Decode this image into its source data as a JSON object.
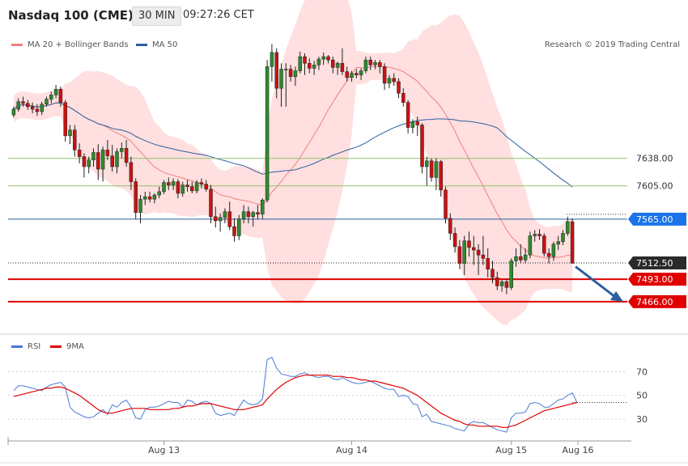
{
  "header": {
    "instrument": "Nasdaq 100 (CME)",
    "timeframe": "30 MIN",
    "time": "09:27:26 CET"
  },
  "legend": {
    "bollinger_label": "MA 20 + Bollinger Bands",
    "ma50_label": "MA 50",
    "copyright": "Research © 2019 Trading Central"
  },
  "rsi_legend": {
    "rsi_label": "RSI",
    "ma_label": "9MA"
  },
  "colors": {
    "bull": "#2e8b2e",
    "bear": "#cc1111",
    "band_fill": "#ffd4d4",
    "ma20": "#f08080",
    "ma50": "#2d5f9e",
    "green_level": "#8fc46a",
    "support": "#e00000",
    "current_price_tag": "#2a2a2a",
    "resistance_tag": "#1a73e8",
    "rsi": "#4a78d6",
    "rsi_ma": "#e00000",
    "arrow": "#2d5f9e"
  },
  "chart_data": [
    {
      "type": "candlestick",
      "title": "Nasdaq 100 (CME)",
      "ylim": [
        7430,
        7760
      ],
      "x_labels": [
        "Aug 13",
        "Aug 14",
        "Aug 15",
        "Aug 16"
      ],
      "levels": [
        {
          "value": 7638.0,
          "label": "7638.00",
          "kind": "resistance"
        },
        {
          "value": 7605.0,
          "label": "7605.00",
          "kind": "resistance"
        },
        {
          "value": 7565.0,
          "label": "7565.00",
          "kind": "pivot"
        },
        {
          "value": 7512.5,
          "label": "7512.50",
          "kind": "last_price"
        },
        {
          "value": 7493.0,
          "label": "7493.00",
          "kind": "support"
        },
        {
          "value": 7466.0,
          "label": "7466.00",
          "kind": "support"
        }
      ],
      "candles": [
        [
          7690,
          7700,
          7687,
          7697
        ],
        [
          7697,
          7710,
          7694,
          7706
        ],
        [
          7706,
          7712,
          7700,
          7704
        ],
        [
          7704,
          7708,
          7696,
          7700
        ],
        [
          7700,
          7705,
          7692,
          7697
        ],
        [
          7697,
          7703,
          7689,
          7694
        ],
        [
          7694,
          7706,
          7690,
          7703
        ],
        [
          7703,
          7712,
          7700,
          7709
        ],
        [
          7709,
          7718,
          7704,
          7714
        ],
        [
          7714,
          7726,
          7710,
          7721
        ],
        [
          7721,
          7724,
          7700,
          7705
        ],
        [
          7705,
          7708,
          7658,
          7665
        ],
        [
          7665,
          7678,
          7655,
          7672
        ],
        [
          7672,
          7678,
          7640,
          7648
        ],
        [
          7648,
          7656,
          7632,
          7640
        ],
        [
          7640,
          7644,
          7615,
          7628
        ],
        [
          7628,
          7640,
          7620,
          7636
        ],
        [
          7636,
          7650,
          7628,
          7645
        ],
        [
          7645,
          7655,
          7612,
          7625
        ],
        [
          7625,
          7652,
          7610,
          7648
        ],
        [
          7648,
          7660,
          7636,
          7641
        ],
        [
          7641,
          7654,
          7622,
          7628
        ],
        [
          7628,
          7650,
          7620,
          7646
        ],
        [
          7646,
          7657,
          7638,
          7650
        ],
        [
          7650,
          7660,
          7628,
          7633
        ],
        [
          7633,
          7640,
          7600,
          7610
        ],
        [
          7610,
          7614,
          7565,
          7573
        ],
        [
          7573,
          7594,
          7560,
          7589
        ],
        [
          7589,
          7598,
          7582,
          7592
        ],
        [
          7592,
          7598,
          7585,
          7589
        ],
        [
          7589,
          7596,
          7584,
          7594
        ],
        [
          7594,
          7604,
          7590,
          7598
        ],
        [
          7598,
          7612,
          7595,
          7609
        ],
        [
          7609,
          7615,
          7600,
          7606
        ],
        [
          7606,
          7614,
          7600,
          7610
        ],
        [
          7610,
          7613,
          7590,
          7596
        ],
        [
          7596,
          7610,
          7592,
          7606
        ],
        [
          7606,
          7612,
          7598,
          7604
        ],
        [
          7604,
          7610,
          7596,
          7599
        ],
        [
          7599,
          7612,
          7596,
          7609
        ],
        [
          7609,
          7614,
          7602,
          7607
        ],
        [
          7607,
          7612,
          7598,
          7601
        ],
        [
          7601,
          7606,
          7560,
          7568
        ],
        [
          7568,
          7580,
          7555,
          7563
        ],
        [
          7563,
          7572,
          7550,
          7567
        ],
        [
          7567,
          7578,
          7560,
          7574
        ],
        [
          7574,
          7586,
          7552,
          7556
        ],
        [
          7556,
          7566,
          7538,
          7545
        ],
        [
          7545,
          7570,
          7540,
          7565
        ],
        [
          7565,
          7582,
          7560,
          7574
        ],
        [
          7574,
          7580,
          7560,
          7568
        ],
        [
          7568,
          7575,
          7556,
          7573
        ],
        [
          7573,
          7582,
          7565,
          7571
        ],
        [
          7571,
          7590,
          7565,
          7588
        ],
        [
          7588,
          7756,
          7585,
          7748
        ],
        [
          7748,
          7775,
          7730,
          7765
        ],
        [
          7765,
          7770,
          7710,
          7722
        ],
        [
          7722,
          7752,
          7700,
          7745
        ],
        [
          7745,
          7752,
          7700,
          7745
        ],
        [
          7745,
          7750,
          7730,
          7736
        ],
        [
          7736,
          7748,
          7725,
          7743
        ],
        [
          7743,
          7766,
          7740,
          7760
        ],
        [
          7760,
          7764,
          7738,
          7752
        ],
        [
          7752,
          7758,
          7740,
          7746
        ],
        [
          7746,
          7755,
          7738,
          7750
        ],
        [
          7750,
          7760,
          7744,
          7757
        ],
        [
          7757,
          7765,
          7750,
          7760
        ],
        [
          7760,
          7762,
          7752,
          7756
        ],
        [
          7756,
          7760,
          7740,
          7747
        ],
        [
          7747,
          7754,
          7738,
          7752
        ],
        [
          7752,
          7770,
          7738,
          7742
        ],
        [
          7742,
          7748,
          7730,
          7735
        ],
        [
          7735,
          7743,
          7730,
          7740
        ],
        [
          7740,
          7745,
          7734,
          7738
        ],
        [
          7738,
          7746,
          7732,
          7743
        ],
        [
          7743,
          7760,
          7740,
          7756
        ],
        [
          7756,
          7760,
          7744,
          7750
        ],
        [
          7750,
          7756,
          7745,
          7753
        ],
        [
          7753,
          7756,
          7740,
          7748
        ],
        [
          7748,
          7752,
          7720,
          7728
        ],
        [
          7728,
          7738,
          7722,
          7734
        ],
        [
          7734,
          7740,
          7725,
          7730
        ],
        [
          7730,
          7734,
          7710,
          7716
        ],
        [
          7716,
          7722,
          7700,
          7705
        ],
        [
          7705,
          7708,
          7668,
          7675
        ],
        [
          7675,
          7685,
          7668,
          7682
        ],
        [
          7682,
          7688,
          7665,
          7678
        ],
        [
          7678,
          7680,
          7620,
          7628
        ],
        [
          7628,
          7640,
          7605,
          7635
        ],
        [
          7635,
          7638,
          7610,
          7615
        ],
        [
          7615,
          7638,
          7600,
          7634
        ],
        [
          7634,
          7636,
          7592,
          7600
        ],
        [
          7600,
          7604,
          7560,
          7566
        ],
        [
          7566,
          7572,
          7540,
          7548
        ],
        [
          7548,
          7555,
          7525,
          7532
        ],
        [
          7532,
          7540,
          7505,
          7512
        ],
        [
          7512,
          7545,
          7498,
          7539
        ],
        [
          7539,
          7550,
          7520,
          7531
        ],
        [
          7531,
          7545,
          7510,
          7528
        ],
        [
          7528,
          7535,
          7498,
          7522
        ],
        [
          7522,
          7545,
          7510,
          7518
        ],
        [
          7518,
          7530,
          7495,
          7505
        ],
        [
          7505,
          7515,
          7488,
          7495
        ],
        [
          7495,
          7502,
          7480,
          7485
        ],
        [
          7485,
          7492,
          7478,
          7490
        ],
        [
          7490,
          7493,
          7475,
          7483
        ],
        [
          7483,
          7518,
          7480,
          7515
        ],
        [
          7515,
          7530,
          7508,
          7520
        ],
        [
          7520,
          7535,
          7512,
          7516
        ],
        [
          7516,
          7530,
          7512,
          7522
        ],
        [
          7522,
          7550,
          7518,
          7545
        ],
        [
          7545,
          7552,
          7538,
          7547
        ],
        [
          7547,
          7553,
          7540,
          7545
        ],
        [
          7545,
          7548,
          7520,
          7524
        ],
        [
          7524,
          7530,
          7512,
          7520
        ],
        [
          7520,
          7538,
          7515,
          7535
        ],
        [
          7535,
          7545,
          7528,
          7538
        ],
        [
          7538,
          7552,
          7534,
          7548
        ],
        [
          7548,
          7568,
          7545,
          7562
        ],
        [
          7562,
          7566,
          7512,
          7512
        ]
      ]
    },
    {
      "type": "line",
      "title": "RSI",
      "ylim": [
        15,
        90
      ],
      "ticks": [
        30,
        50,
        70
      ],
      "series": [
        {
          "name": "RSI",
          "values": [
            54,
            58,
            58,
            57,
            56,
            55,
            54,
            57,
            59,
            60,
            61,
            57,
            40,
            36,
            34,
            32,
            31,
            32,
            35,
            38,
            34,
            42,
            40,
            44,
            46,
            40,
            31,
            30,
            38,
            40,
            40,
            41,
            43,
            45,
            44,
            44,
            40,
            46,
            45,
            42,
            44,
            45,
            43,
            35,
            33,
            34,
            35,
            33,
            40,
            46,
            43,
            42,
            43,
            47,
            80,
            82,
            73,
            68,
            67,
            66,
            66,
            68,
            69,
            67,
            66,
            65,
            66,
            66,
            64,
            63,
            65,
            63,
            61,
            60,
            60,
            61,
            62,
            60,
            58,
            56,
            55,
            55,
            49,
            50,
            49,
            43,
            42,
            32,
            34,
            28,
            27,
            26,
            25,
            24,
            22,
            21,
            20,
            26,
            28,
            27,
            27,
            25,
            23,
            21,
            20,
            19,
            31,
            35,
            35,
            36,
            43,
            44,
            43,
            40,
            40,
            43,
            46,
            47,
            50,
            52,
            44
          ]
        },
        {
          "name": "9MA",
          "values": [
            49,
            50,
            51,
            52,
            53,
            54,
            55,
            56,
            56,
            57,
            57,
            56,
            54,
            52,
            50,
            47,
            44,
            41,
            38,
            36,
            35,
            35,
            36,
            37,
            38,
            39,
            39,
            39,
            39,
            38,
            38,
            38,
            38,
            38,
            39,
            39,
            40,
            41,
            41,
            42,
            43,
            43,
            43,
            42,
            41,
            40,
            39,
            38,
            38,
            38,
            39,
            40,
            41,
            42,
            47,
            51,
            55,
            58,
            61,
            63,
            65,
            66,
            67,
            67,
            67,
            67,
            67,
            67,
            66,
            66,
            66,
            65,
            65,
            64,
            63,
            63,
            62,
            62,
            61,
            60,
            59,
            58,
            57,
            56,
            54,
            52,
            50,
            47,
            44,
            41,
            38,
            35,
            33,
            31,
            29,
            28,
            26,
            25,
            25,
            24,
            24,
            24,
            24,
            24,
            23,
            23,
            24,
            25,
            27,
            29,
            31,
            33,
            35,
            37,
            38,
            39,
            40,
            41,
            42,
            43,
            44
          ]
        }
      ],
      "last_values": {
        "RSI": 44,
        "9MA": 44
      }
    }
  ]
}
